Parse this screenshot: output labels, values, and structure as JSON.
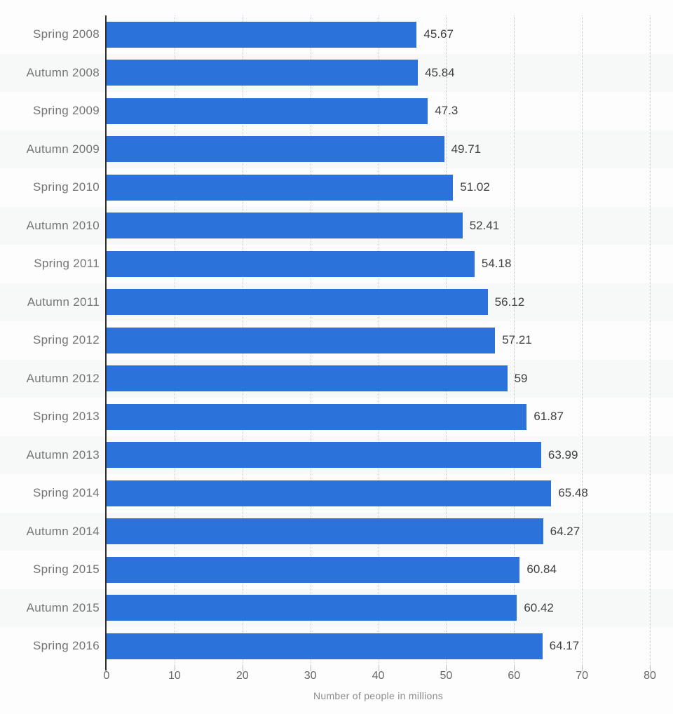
{
  "chart_data": {
    "type": "bar",
    "orientation": "horizontal",
    "title": "",
    "xlabel": "Number of people in millions",
    "ylabel": "",
    "categories": [
      "Spring 2008",
      "Autumn 2008",
      "Spring 2009",
      "Autumn 2009",
      "Spring 2010",
      "Autumn 2010",
      "Spring 2011",
      "Autumn 2011",
      "Spring 2012",
      "Autumn 2012",
      "Spring 2013",
      "Autumn 2013",
      "Spring 2014",
      "Autumn 2014",
      "Spring 2015",
      "Autumn 2015",
      "Spring 2016"
    ],
    "values": [
      45.67,
      45.84,
      47.3,
      49.71,
      51.02,
      52.41,
      54.18,
      56.12,
      57.21,
      59,
      61.87,
      63.99,
      65.48,
      64.27,
      60.84,
      60.42,
      64.17
    ],
    "value_labels": [
      "45.67",
      "45.84",
      "47.3",
      "49.71",
      "51.02",
      "52.41",
      "54.18",
      "56.12",
      "57.21",
      "59",
      "61.87",
      "63.99",
      "65.48",
      "64.27",
      "60.84",
      "60.42",
      "64.17"
    ],
    "xlim": [
      0,
      80
    ],
    "xticks": [
      0,
      10,
      20,
      30,
      40,
      50,
      60,
      70,
      80
    ],
    "grid": "vertical-dotted",
    "legend": "none",
    "colors": {
      "bar": "#2b72db",
      "category_label": "#757575",
      "value_label": "#404040",
      "tick_label": "#666666",
      "axis_label": "#8c8c8c",
      "axis_line": "#2e2e2e",
      "gridline": "#c6c6c6",
      "stripe": "#f7f8f8"
    }
  }
}
